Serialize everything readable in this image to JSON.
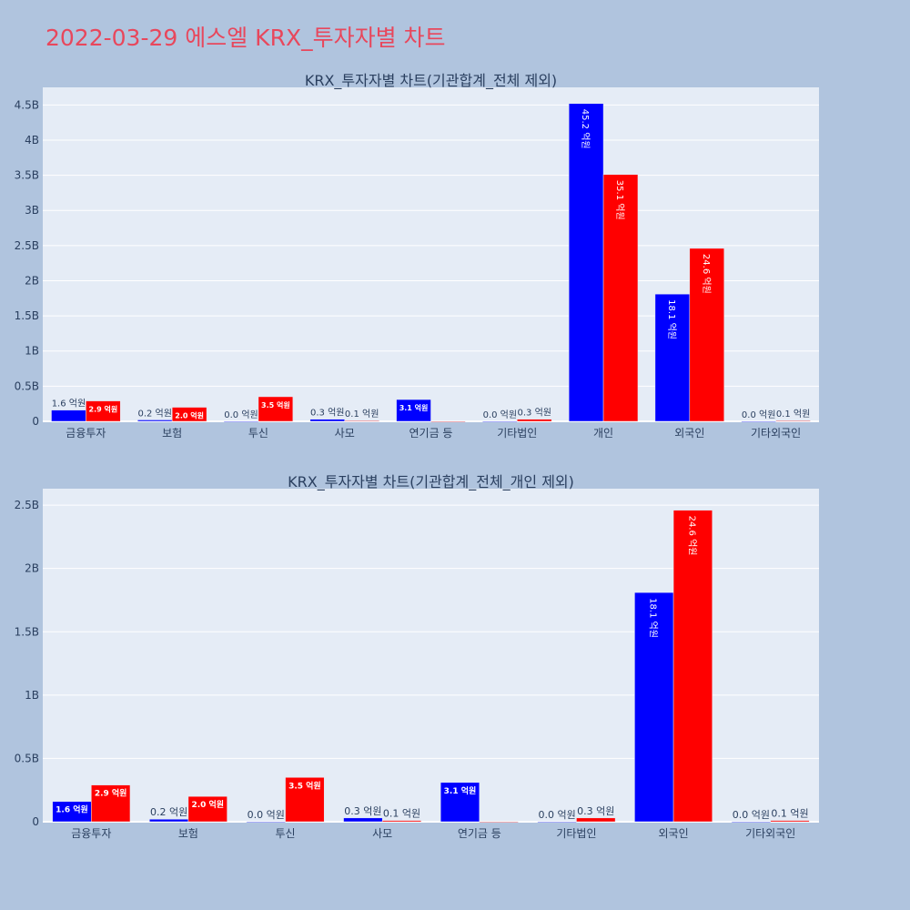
{
  "page": {
    "title": "2022-03-29 에스엘 KRX_투자자별 차트"
  },
  "colors": {
    "series_a": "#0000ff",
    "series_b": "#ff0000",
    "plot_bg": "#e5ecf6",
    "page_bg": "#b0c4de",
    "title": "#e8475c"
  },
  "chart_data": [
    {
      "type": "bar",
      "title": "KRX_투자자별 차트(기관합계_전체 제외)",
      "categories": [
        "금융투자",
        "보험",
        "투신",
        "사모",
        "연기금 등",
        "기타법인",
        "개인",
        "외국인",
        "기타외국인"
      ],
      "series": [
        {
          "values": [
            0.16,
            0.02,
            0.0,
            0.03,
            0.31,
            0.0,
            4.52,
            1.81,
            0.0
          ],
          "labels": [
            "1.6 억원",
            "0.2 억원",
            "0.0 억원",
            "0.3 억원",
            "3.1 억원",
            "0.0 억원",
            "45.2 억원",
            "18.1 억원",
            "0.0 억원"
          ]
        },
        {
          "values": [
            0.29,
            0.2,
            0.35,
            0.01,
            0.0,
            0.03,
            3.51,
            2.46,
            0.01
          ],
          "labels": [
            "2.9 억원",
            "2.0 억원",
            "3.5 억원",
            "0.1 억원",
            "",
            "0.3 억원",
            "35.1 억원",
            "24.6 억원",
            "0.1 억원"
          ]
        }
      ],
      "y_ticks": [
        "0",
        "0.5B",
        "1B",
        "1.5B",
        "2B",
        "2.5B",
        "3B",
        "3.5B",
        "4B",
        "4.5B"
      ],
      "ylim": [
        0,
        4.75
      ],
      "grid": true
    },
    {
      "type": "bar",
      "title": "KRX_투자자별 차트(기관합계_전체_개인 제외)",
      "categories": [
        "금융투자",
        "보험",
        "투신",
        "사모",
        "연기금 등",
        "기타법인",
        "외국인",
        "기타외국인"
      ],
      "series": [
        {
          "values": [
            0.16,
            0.02,
            0.0,
            0.03,
            0.31,
            0.0,
            1.81,
            0.0
          ],
          "labels": [
            "1.6 억원",
            "0.2 억원",
            "0.0 억원",
            "0.3 억원",
            "3.1 억원",
            "0.0 억원",
            "18.1 억원",
            "0.0 억원"
          ]
        },
        {
          "values": [
            0.29,
            0.2,
            0.35,
            0.01,
            0.0,
            0.03,
            2.46,
            0.01
          ],
          "labels": [
            "2.9 억원",
            "2.0 억원",
            "3.5 억원",
            "0.1 억원",
            "",
            "0.3 억원",
            "24.6 억원",
            "0.1 억원"
          ]
        }
      ],
      "y_ticks": [
        "0",
        "0.5B",
        "1B",
        "1.5B",
        "2B",
        "2.5B"
      ],
      "ylim": [
        0,
        2.63
      ],
      "grid": true
    }
  ]
}
